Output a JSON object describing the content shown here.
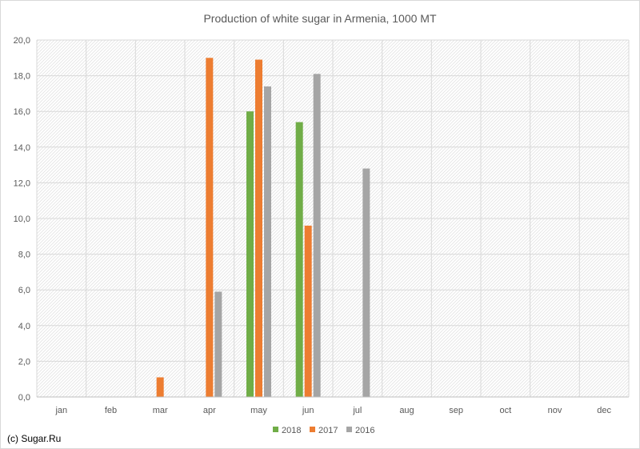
{
  "chart_data": {
    "type": "bar",
    "title": "Production of white sugar in Armenia, 1000 MT",
    "categories": [
      "jan",
      "feb",
      "mar",
      "apr",
      "may",
      "jun",
      "jul",
      "aug",
      "sep",
      "oct",
      "nov",
      "dec"
    ],
    "series": [
      {
        "name": "2018",
        "color": "#70ad47",
        "values": [
          null,
          null,
          null,
          null,
          16.0,
          15.4,
          null,
          null,
          null,
          null,
          null,
          null
        ]
      },
      {
        "name": "2017",
        "color": "#ed7d31",
        "values": [
          null,
          null,
          1.1,
          19.0,
          18.9,
          9.6,
          null,
          null,
          null,
          null,
          null,
          null
        ]
      },
      {
        "name": "2016",
        "color": "#a5a5a5",
        "values": [
          null,
          null,
          null,
          5.9,
          17.4,
          18.1,
          12.8,
          null,
          null,
          null,
          null,
          null
        ]
      }
    ],
    "ylim": [
      0,
      20
    ],
    "yticks": [
      "0,0",
      "2,0",
      "4,0",
      "6,0",
      "8,0",
      "10,0",
      "12,0",
      "14,0",
      "16,0",
      "18,0",
      "20,0"
    ],
    "grid": true,
    "legend_position": "bottom"
  },
  "footer": {
    "credit": "(c) Sugar.Ru"
  }
}
